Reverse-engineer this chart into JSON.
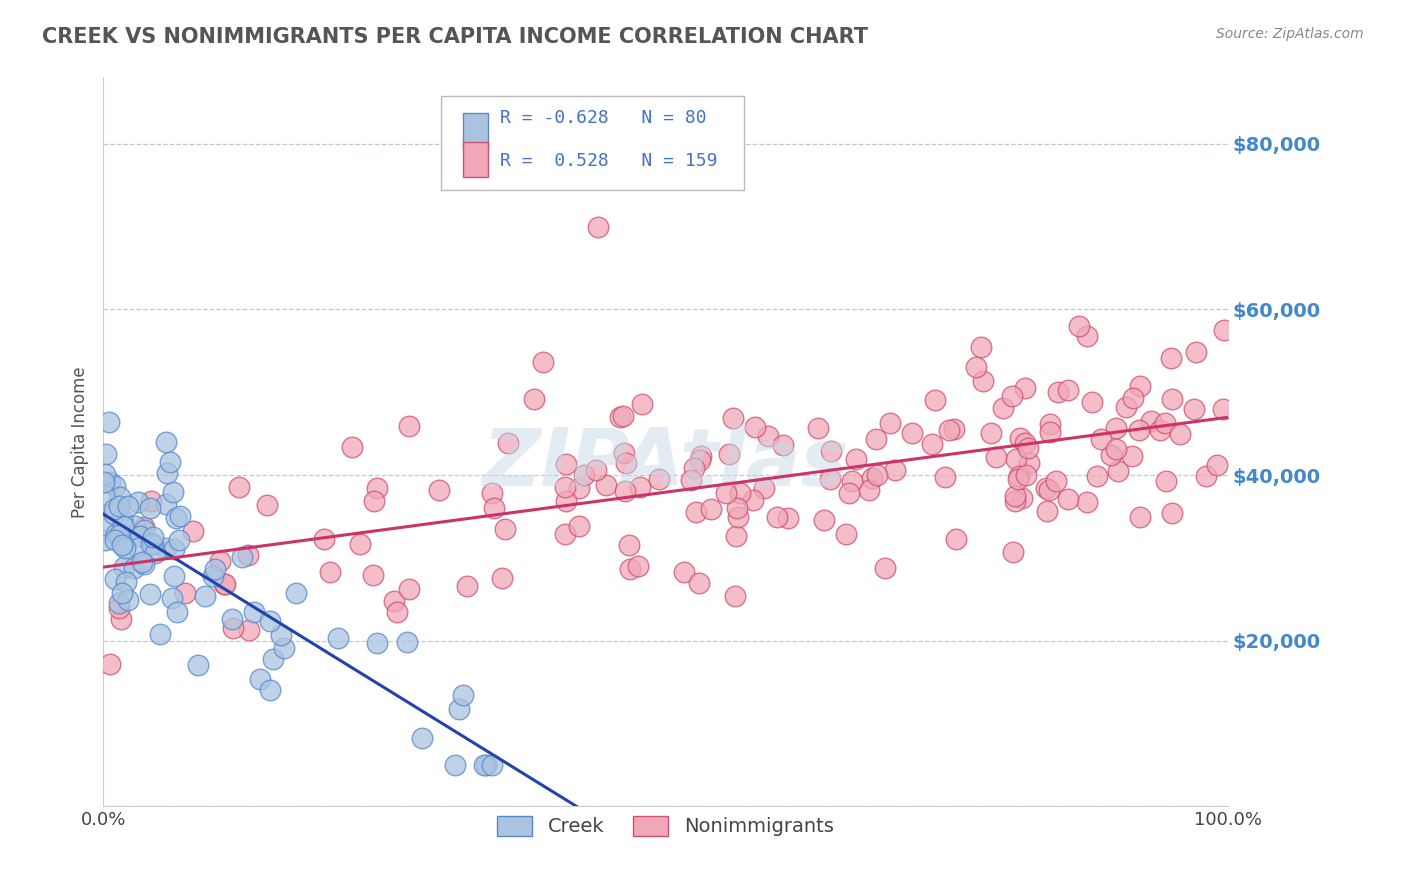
{
  "title": "CREEK VS NONIMMIGRANTS PER CAPITA INCOME CORRELATION CHART",
  "source": "Source: ZipAtlas.com",
  "ylabel": "Per Capita Income",
  "xlim": [
    0.0,
    100.0
  ],
  "ylim": [
    0,
    88000
  ],
  "yticks": [
    0,
    20000,
    40000,
    60000,
    80000
  ],
  "ytick_labels": [
    "",
    "$20,000",
    "$40,000",
    "$60,000",
    "$80,000"
  ],
  "xtick_labels": [
    "0.0%",
    "100.0%"
  ],
  "creek_color": "#aac4e0",
  "creek_edge": "#5588cc",
  "nonimm_color": "#f0a8b8",
  "nonimm_edge": "#d05070",
  "creek_line_color": "#2244aa",
  "nonimm_line_color": "#cc3366",
  "creek_R": -0.628,
  "creek_N": 80,
  "nonimm_R": 0.528,
  "nonimm_N": 159,
  "background_color": "#ffffff",
  "grid_color": "#c0c8d0",
  "title_color": "#555555",
  "axis_label_color": "#4488cc",
  "legend_R_color": "#4472c4",
  "watermark_color": "#c8d8e8"
}
